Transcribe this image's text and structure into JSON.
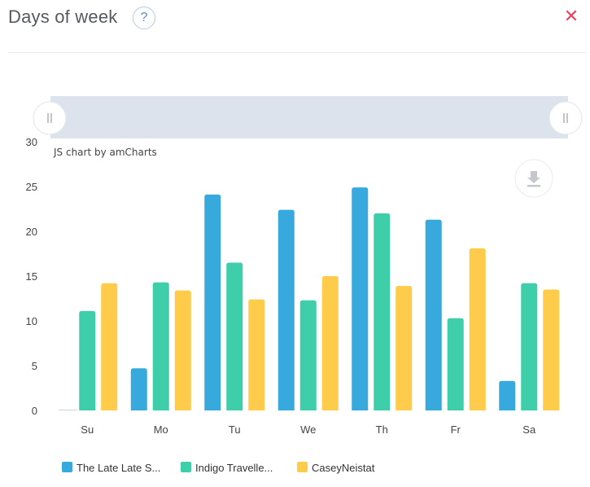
{
  "header": {
    "title": "Days of week",
    "help_label": "?",
    "close_label": "✕"
  },
  "chart_credit": "JS chart by amCharts",
  "colors": {
    "series_1": "#38a9dc",
    "series_2": "#3ecfaa",
    "series_3": "#fecc4a",
    "scrollbar": "#dde3ec",
    "close": "#e8435e"
  },
  "icons": {
    "help": "question-mark-icon",
    "close": "close-icon",
    "download": "download-icon",
    "scroll_grip": "grip-icon"
  },
  "chart_data": {
    "type": "bar",
    "categories": [
      "Su",
      "Mo",
      "Tu",
      "We",
      "Th",
      "Fr",
      "Sa"
    ],
    "series": [
      {
        "name": "The Late Late S...",
        "color": "#38a9dc",
        "values": [
          0,
          4.7,
          24.1,
          22.4,
          24.9,
          21.3,
          3.3
        ]
      },
      {
        "name": "Indigo Travelle...",
        "color": "#3ecfaa",
        "values": [
          11.1,
          14.3,
          16.5,
          12.3,
          22.0,
          10.3,
          14.2
        ]
      },
      {
        "name": "CaseyNeistat",
        "color": "#fecc4a",
        "values": [
          14.2,
          13.4,
          12.4,
          15.0,
          13.9,
          18.1,
          13.5
        ]
      }
    ],
    "yticks": [
      "0",
      "5",
      "10",
      "15",
      "20",
      "25",
      "30"
    ],
    "ylim": [
      0,
      30
    ],
    "grid": false,
    "legend_position": "bottom-left",
    "scrollbar": "top"
  }
}
